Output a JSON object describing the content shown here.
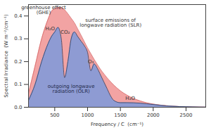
{
  "chart_data": {
    "type": "area",
    "x_label": "Frequency / C  (cm⁻¹)",
    "y_label": "Spectral Irradiance  (W m⁻²/cm⁻¹)",
    "x": [
      100,
      200,
      300,
      400,
      450,
      500,
      550,
      600,
      650,
      700,
      750,
      800,
      850,
      900,
      950,
      1000,
      1050,
      1100,
      1150,
      1200,
      1250,
      1300,
      1350,
      1400,
      1500,
      1600,
      1800,
      2000,
      2200,
      2400,
      2600,
      2800
    ],
    "series": [
      {
        "name": "surface emissions of longwave radiation (SLR)",
        "color": "#f2a3a3",
        "values": [
          0.06,
          0.18,
          0.3,
          0.387,
          0.42,
          0.432,
          0.437,
          0.437,
          0.427,
          0.41,
          0.39,
          0.37,
          0.343,
          0.316,
          0.288,
          0.26,
          0.235,
          0.21,
          0.187,
          0.165,
          0.146,
          0.128,
          0.112,
          0.097,
          0.072,
          0.053,
          0.028,
          0.014,
          0.007,
          0.003,
          0.0015,
          0.0007
        ]
      },
      {
        "name": "outgoing longwave radiation (OLR)",
        "color": "#8e9bd3",
        "values": [
          0.03,
          0.1,
          0.2,
          0.28,
          0.31,
          0.33,
          0.35,
          0.3,
          0.13,
          0.2,
          0.3,
          0.33,
          0.31,
          0.29,
          0.27,
          0.24,
          0.16,
          0.19,
          0.17,
          0.14,
          0.11,
          0.08,
          0.05,
          0.03,
          0.02,
          0.02,
          0.018,
          0.012,
          0.006,
          0.003,
          0.0015,
          0.0007
        ]
      }
    ],
    "annotations": [
      "greenhouse effect (GHE)",
      "H₂O",
      "CO₂",
      "O₃",
      "H₂O"
    ],
    "xlim": [
      100,
      2800
    ],
    "xticks": [
      500,
      1000,
      1500,
      2000,
      2500
    ],
    "ylim": [
      0,
      0.45
    ],
    "yticks": [
      {
        "value": 0,
        "label": "0.0"
      },
      0.1,
      0.2,
      0.3,
      0.4
    ],
    "grid": false
  }
}
